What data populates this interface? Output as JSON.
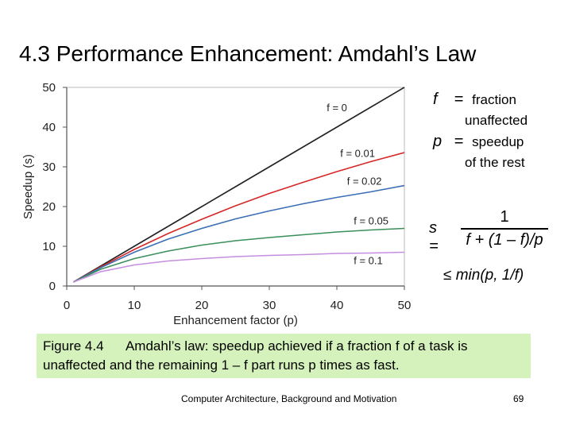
{
  "slide": {
    "title": "4.3  Performance Enhancement: Amdahl’s Law",
    "footer": "Computer Architecture, Background and Motivation",
    "page_number": "69"
  },
  "definitions": {
    "f_symbol": "f",
    "f_desc_1": "fraction",
    "f_desc_2": "unaffected",
    "p_symbol": "p",
    "p_desc_1": "speedup",
    "p_desc_2": "of the rest",
    "equals": "="
  },
  "formula": {
    "lhs": "s =",
    "numerator": "1",
    "denominator": "f + (1 – f)/p",
    "bound": "≤ min(p, 1/f)"
  },
  "caption": {
    "label": "Figure 4.4",
    "text": "Amdahl’s law: speedup achieved if a fraction f of a task is unaffected and the remaining 1 – f part runs p times as fast."
  },
  "chart_data": {
    "type": "line",
    "xlabel": "Enhancement factor (p)",
    "ylabel": "Speedup (s)",
    "xlim": [
      0,
      50
    ],
    "ylim": [
      0,
      50
    ],
    "xticks": [
      0,
      10,
      20,
      30,
      40,
      50
    ],
    "yticks": [
      0,
      10,
      20,
      30,
      40,
      50
    ],
    "grid": false,
    "series": [
      {
        "name": "f = 0",
        "f": 0,
        "color": "#222222",
        "x": [
          1,
          5,
          10,
          15,
          20,
          25,
          30,
          35,
          40,
          45,
          50
        ],
        "y": [
          1,
          5,
          10,
          15,
          20,
          25,
          30,
          35,
          40,
          45,
          50
        ]
      },
      {
        "name": "f = 0.01",
        "f": 0.01,
        "color": "#d62728",
        "x": [
          1,
          5,
          10,
          15,
          20,
          25,
          30,
          35,
          40,
          45,
          50
        ],
        "y": [
          1,
          4.8,
          9.2,
          13.2,
          16.8,
          20.2,
          23.3,
          26.1,
          28.8,
          31.3,
          33.6
        ]
      },
      {
        "name": "f = 0.02",
        "f": 0.02,
        "color": "#3a6fb5",
        "x": [
          1,
          5,
          10,
          15,
          20,
          25,
          30,
          35,
          40,
          45,
          50
        ],
        "y": [
          1,
          4.6,
          8.5,
          11.8,
          14.5,
          16.9,
          18.9,
          20.7,
          22.3,
          23.7,
          25.3
        ]
      },
      {
        "name": "f = 0.05",
        "f": 0.05,
        "color": "#3a8f5a",
        "x": [
          1,
          5,
          10,
          15,
          20,
          25,
          30,
          35,
          40,
          45,
          50
        ],
        "y": [
          1,
          4.2,
          6.9,
          8.8,
          10.3,
          11.4,
          12.2,
          12.9,
          13.6,
          14.1,
          14.5
        ]
      },
      {
        "name": "f = 0.1",
        "f": 0.1,
        "color": "#c48fe0",
        "x": [
          1,
          5,
          10,
          15,
          20,
          25,
          30,
          35,
          40,
          45,
          50
        ],
        "y": [
          1,
          3.6,
          5.3,
          6.3,
          6.9,
          7.4,
          7.7,
          7.9,
          8.2,
          8.3,
          8.5
        ]
      }
    ],
    "labels": [
      {
        "text": "f = 0",
        "x": 38.5,
        "y": 44
      },
      {
        "text": "f = 0.01",
        "x": 40.5,
        "y": 32.5
      },
      {
        "text": "f = 0.02",
        "x": 41.5,
        "y": 25.5
      },
      {
        "text": "f = 0.05",
        "x": 42.5,
        "y": 15.5
      },
      {
        "text": "f = 0.1",
        "x": 42.5,
        "y": 5.5
      }
    ]
  }
}
